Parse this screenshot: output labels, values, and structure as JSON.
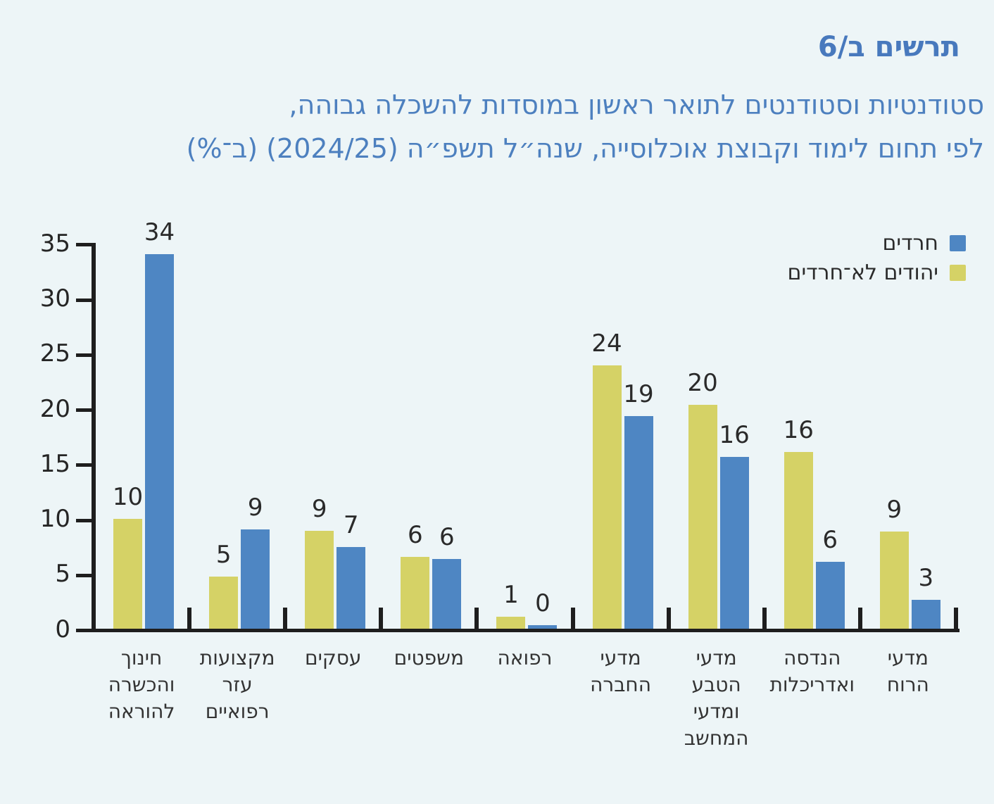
{
  "page": {
    "title": "תרשים ב/6",
    "subtitle_line1": "סטודנטיות וסטודנטים לתואר ראשון במוסדות להשכלה גבוהה,",
    "subtitle_line2": "לפי תחום לימוד וקבוצת אוכלוסייה, שנה״ל תשפ״ה (2024/25) (ב־%)"
  },
  "colors": {
    "background": "#edf5f7",
    "title_blue": "#4879bd",
    "haredim_blue": "#4e86c3",
    "non_haredi_yellow": "#d5d266",
    "axis_dark": "#1e1e1e",
    "label_dark": "#2a2a2a"
  },
  "legend": {
    "items": [
      {
        "label": "חרדים",
        "color": "#4e86c3"
      },
      {
        "label": "יהודים לא־חרדים",
        "color": "#d5d266"
      }
    ]
  },
  "chart_data": {
    "type": "bar",
    "title": "תרשים ב/6",
    "subtitle": "סטודנטיות וסטודנטים לתואר ראשון במוסדות להשכלה גבוהה, לפי תחום לימוד וקבוצת אוכלוסייה, שנה״ל תשפ״ה (2024/25) (ב־%)",
    "ylabel": "",
    "xlabel": "",
    "ylim": [
      0,
      35
    ],
    "yticks": [
      0,
      5,
      10,
      15,
      20,
      25,
      30,
      35
    ],
    "grid": false,
    "legend_position": "top-right",
    "value_labels": true,
    "categories_visual_order": "left-to-right",
    "categories": [
      {
        "label": "חינוך והכשרה להוראה",
        "lines": "חינוך\nוהכשרה\nלהוראה"
      },
      {
        "label": "מקצועות עזר רפואיים",
        "lines": "מקצועות\nעזר\nרפואיים"
      },
      {
        "label": "עסקים",
        "lines": "עסקים"
      },
      {
        "label": "משפטים",
        "lines": "משפטים"
      },
      {
        "label": "רפואה",
        "lines": "רפואה"
      },
      {
        "label": "מדעי החברה",
        "lines": "מדעי\nהחברה"
      },
      {
        "label": "מדעי הטבע ומדעי המחשב",
        "lines": "מדעי\nהטבע\nומדעי\nהמחשב"
      },
      {
        "label": "הנדסה ואדריכלות",
        "lines": "הנדסה\nואדריכלות"
      },
      {
        "label": "מדעי הרוח",
        "lines": "מדעי\nהרוח"
      }
    ],
    "series": [
      {
        "name": "יהודים לא־חרדים",
        "color": "#d5d266",
        "values": [
          10,
          5,
          9,
          6,
          1,
          24,
          20,
          16,
          9
        ],
        "bar_heights_pct": [
          10.0,
          4.7,
          8.85,
          6.5,
          1.1,
          23.9,
          20.3,
          16.05,
          8.8
        ]
      },
      {
        "name": "חרדים",
        "color": "#4e86c3",
        "values": [
          34,
          9,
          7,
          6,
          0,
          19,
          16,
          6,
          3
        ],
        "bar_heights_pct": [
          34.0,
          9.0,
          7.4,
          6.3,
          0.3,
          19.3,
          15.6,
          6.1,
          2.6
        ]
      }
    ]
  }
}
